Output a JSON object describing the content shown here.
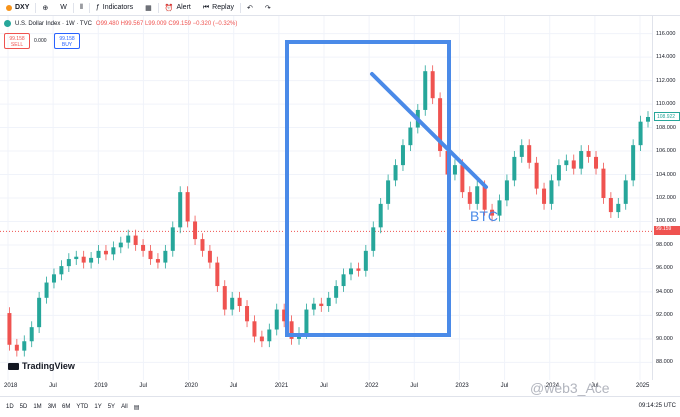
{
  "toolbar": {
    "symbol": "DXY",
    "interval": "W",
    "indicators_label": "Indicators",
    "alert_label": "Alert",
    "replay_label": "Replay"
  },
  "legend": {
    "name": "U.S. Dollar Index · 1W · TVC",
    "ohlc": "O99.480 H99.567 L99.009 C99.159 −0.320 (−0.32%)"
  },
  "trade": {
    "sell_price": "99.158",
    "sell_label": "SELL",
    "spread": "0.000",
    "buy_price": "99.158",
    "buy_label": "BUY"
  },
  "annotation": {
    "text": "BTC"
  },
  "brand": "TradingView",
  "watermark": "@web3_Ace",
  "price_tags": {
    "upper": "108.922",
    "current": "99.159",
    "current_sub": "2d 6h"
  },
  "footer": {
    "ranges": [
      "1D",
      "5D",
      "1M",
      "3M",
      "6M",
      "YTD",
      "1Y",
      "5Y",
      "All"
    ],
    "time": "09:14:25 UTC"
  },
  "colors": {
    "up": "#26a69a",
    "down": "#ef5350",
    "annotation": "#4a8ae8",
    "accent": "#2962ff"
  },
  "chart_data": {
    "type": "candlestick",
    "x_labels": [
      "2018",
      "Jul",
      "2019",
      "Jul",
      "2020",
      "Jul",
      "2021",
      "Jul",
      "2022",
      "Jul",
      "2023",
      "Jul",
      "2024",
      "Jul",
      "2025"
    ],
    "y_ticks": [
      88.0,
      90.0,
      92.0,
      94.0,
      96.0,
      98.0,
      100.0,
      102.0,
      104.0,
      106.0,
      108.0,
      110.0,
      112.0,
      114.0,
      116.0
    ],
    "ylim": [
      86.5,
      117.5
    ],
    "series": [
      {
        "values": [
          92.2,
          89.5,
          89.0,
          89.8,
          91.0,
          93.5,
          94.8,
          95.5,
          96.2,
          96.8,
          97.0,
          96.5,
          96.9,
          97.5,
          97.2,
          97.8,
          98.2,
          98.8,
          98.0,
          97.5,
          96.8,
          96.5,
          97.5,
          99.5,
          102.5,
          100.0,
          98.5,
          97.5,
          96.5,
          94.5,
          92.5,
          93.5,
          92.8,
          91.5,
          90.2,
          89.8,
          90.8,
          92.5,
          91.5,
          90.0,
          90.5,
          92.5,
          93.0,
          92.8,
          93.5,
          94.5,
          95.5,
          96.0,
          95.8,
          97.5,
          99.5,
          101.5,
          103.5,
          104.8,
          106.5,
          108.0,
          109.5,
          112.8,
          110.5,
          106.0,
          104.0,
          104.8,
          102.5,
          101.5,
          103.0,
          101.0,
          100.5,
          101.8,
          103.5,
          105.5,
          106.5,
          105.0,
          102.8,
          101.5,
          103.5,
          104.8,
          105.2,
          104.5,
          106.0,
          105.5,
          104.5,
          102.0,
          100.8,
          101.5,
          103.5,
          106.5,
          108.5,
          108.9
        ]
      }
    ]
  }
}
